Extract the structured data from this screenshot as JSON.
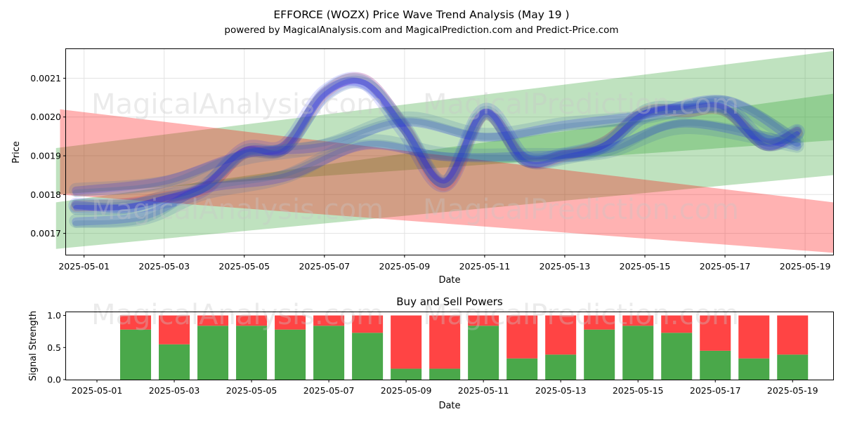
{
  "title": "EFFORCE (WOZX) Price Wave Trend Analysis (May 19 )",
  "subtitle": "powered by MagicalAnalysis.com and MagicalPrediction.com and Predict-Price.com",
  "watermarks": [
    "MagicalAnalysis.com",
    "MagicalPrediction.com"
  ],
  "colors": {
    "green": "#2ca02c",
    "red": "#ff0000",
    "blue": "#0000ff",
    "steel": "#3b6fa6",
    "buy_bar": "#4aa84a",
    "sell_bar": "#ff4444"
  },
  "chart_data": [
    {
      "type": "area",
      "title": "",
      "xlabel": "Date",
      "ylabel": "Price",
      "grid": true,
      "xlim": [
        -0.45,
        18.7
      ],
      "ylim": [
        0.001645,
        0.002175
      ],
      "x_ticks": [
        "2025-05-01",
        "2025-05-03",
        "2025-05-05",
        "2025-05-07",
        "2025-05-09",
        "2025-05-11",
        "2025-05-13",
        "2025-05-15",
        "2025-05-17",
        "2025-05-19"
      ],
      "x_tick_days": [
        0,
        2,
        4,
        6,
        8,
        10,
        12,
        14,
        16,
        18
      ],
      "y_ticks": [
        "0.0017",
        "0.0018",
        "0.0019",
        "0.0020",
        "0.0021"
      ],
      "y_tick_values": [
        0.0017,
        0.0018,
        0.0019,
        0.002,
        0.0021
      ],
      "bands": [
        {
          "name": "green-upper",
          "color": "green",
          "x": [
            -0.7,
            18.7
          ],
          "lower": [
            0.0018,
            0.00194
          ],
          "upper": [
            0.00192,
            0.00217
          ]
        },
        {
          "name": "green-lower",
          "color": "green",
          "x": [
            -0.7,
            18.7
          ],
          "lower": [
            0.00166,
            0.00185
          ],
          "upper": [
            0.00178,
            0.00206
          ]
        },
        {
          "name": "red-down",
          "color": "red",
          "x": [
            -0.6,
            18.7
          ],
          "lower": [
            0.0018,
            0.00165
          ],
          "upper": [
            0.00202,
            0.00178
          ]
        }
      ],
      "series": [
        {
          "name": "price-wave",
          "x": [
            -0.2,
            1,
            2,
            3,
            4,
            5,
            6,
            7,
            8,
            9,
            10,
            11,
            12,
            13,
            14,
            15,
            16,
            17,
            17.8
          ],
          "values": [
            0.00176,
            0.00178,
            0.00178,
            0.00183,
            0.0019,
            0.00193,
            0.00205,
            0.0021,
            0.00196,
            0.00184,
            0.002,
            0.0019,
            0.00189,
            0.00194,
            0.002,
            0.00203,
            0.00201,
            0.00194,
            0.00195
          ]
        },
        {
          "name": "trend-upper",
          "x": [
            -0.2,
            2,
            4,
            6,
            8,
            10,
            12,
            14,
            16,
            17.8
          ],
          "values": [
            0.0018,
            0.00184,
            0.00189,
            0.00194,
            0.00198,
            0.00196,
            0.00197,
            0.00201,
            0.00203,
            0.00195
          ]
        },
        {
          "name": "trend-lower",
          "x": [
            -0.2,
            1.5,
            3,
            5,
            7,
            9,
            11,
            13,
            15,
            17.8
          ],
          "values": [
            0.00172,
            0.00175,
            0.0018,
            0.00186,
            0.00192,
            0.00191,
            0.00189,
            0.00192,
            0.00197,
            0.00194
          ]
        }
      ]
    },
    {
      "type": "bar",
      "title": "Buy and Sell Powers",
      "xlabel": "Date",
      "ylabel": "Signal Strength",
      "ylim": [
        0,
        1.05
      ],
      "y_ticks": [
        "0.0",
        "0.5",
        "1.0"
      ],
      "y_tick_values": [
        0,
        0.5,
        1
      ],
      "x_ticks": [
        "2025-05-01",
        "2025-05-03",
        "2025-05-05",
        "2025-05-07",
        "2025-05-09",
        "2025-05-11",
        "2025-05-13",
        "2025-05-15",
        "2025-05-17",
        "2025-05-19"
      ],
      "x_tick_days": [
        0,
        2,
        4,
        6,
        8,
        10,
        12,
        14,
        16,
        18
      ],
      "xlim": [
        -0.8,
        19.05
      ],
      "categories": [
        "2025-05-02",
        "2025-05-03",
        "2025-05-04",
        "2025-05-05",
        "2025-05-06",
        "2025-05-07",
        "2025-05-08",
        "2025-05-09",
        "2025-05-10",
        "2025-05-11",
        "2025-05-12",
        "2025-05-13",
        "2025-05-14",
        "2025-05-15",
        "2025-05-16",
        "2025-05-17",
        "2025-05-18",
        "2025-05-19"
      ],
      "series": [
        {
          "name": "Buy",
          "color": "buy_bar",
          "values": [
            0.78,
            0.55,
            0.84,
            0.84,
            0.78,
            0.84,
            0.73,
            0.17,
            0.17,
            0.84,
            0.33,
            0.39,
            0.78,
            0.84,
            0.73,
            0.45,
            0.33,
            0.39
          ]
        },
        {
          "name": "Sell",
          "color": "sell_bar",
          "values": [
            0.22,
            0.45,
            0.16,
            0.16,
            0.22,
            0.16,
            0.27,
            0.83,
            0.83,
            0.16,
            0.67,
            0.61,
            0.22,
            0.16,
            0.27,
            0.55,
            0.67,
            0.61
          ]
        }
      ]
    }
  ]
}
